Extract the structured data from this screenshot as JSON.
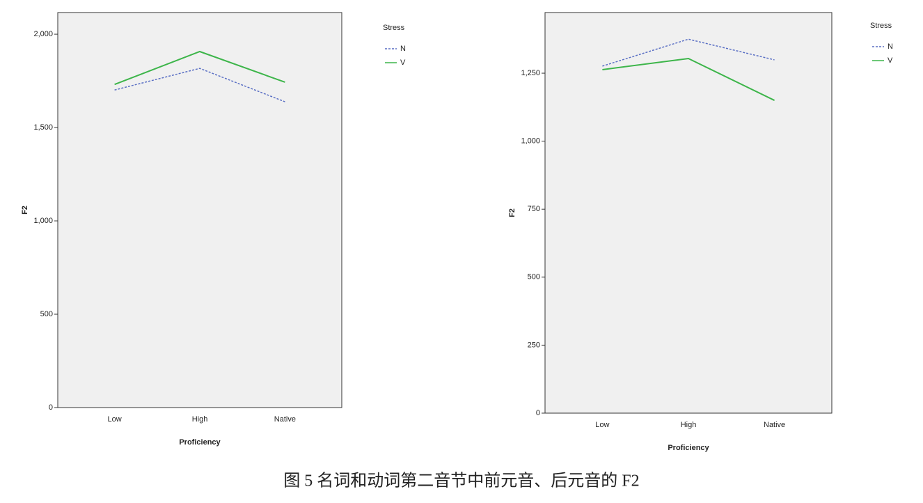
{
  "chart_data": [
    {
      "type": "line",
      "y_label": "F2",
      "x_label": "Proficiency",
      "legend_title": "Stress",
      "legend": "right",
      "categories": [
        "Low",
        "High",
        "Native"
      ],
      "series": [
        {
          "name": "N",
          "color": "#5a6fc4",
          "line_style": "dashed",
          "values": [
            1701,
            1817,
            1638
          ]
        },
        {
          "name": "V",
          "color": "#3db54a",
          "line_style": "solid",
          "values": [
            1731,
            1907,
            1743
          ]
        }
      ],
      "ylim": [
        0,
        2116
      ],
      "yticks": [
        0,
        500,
        {
          "value": 1000,
          "label": "1,000"
        },
        {
          "value": 1500,
          "label": "1,500"
        },
        {
          "value": 2000,
          "label": "2,000"
        }
      ]
    },
    {
      "type": "line",
      "y_label": "F2",
      "x_label": "Proficiency",
      "legend_title": "Stress",
      "legend": "right",
      "categories": [
        "Low",
        "High",
        "Native"
      ],
      "series": [
        {
          "name": "N",
          "color": "#5a6fc4",
          "line_style": "dashed",
          "values": [
            1276,
            1375,
            1299
          ]
        },
        {
          "name": "V",
          "color": "#3db54a",
          "line_style": "solid",
          "values": [
            1263,
            1304,
            1150
          ]
        }
      ],
      "ylim": [
        0,
        1473
      ],
      "yticks": [
        0,
        250,
        500,
        750,
        {
          "value": 1000,
          "label": "1,000"
        },
        {
          "value": 1250,
          "label": "1,250"
        }
      ]
    }
  ],
  "caption": "图 5 名词和动词第二音节中前元音、后元音的 F2"
}
